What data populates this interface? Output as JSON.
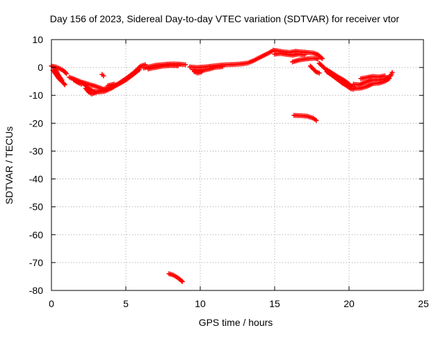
{
  "chart_data": {
    "type": "scatter",
    "title": "Day 156 of 2023, Sidereal Day-to-day VTEC variation (SDTVAR) for receiver vtor",
    "xlabel": "GPS time / hours",
    "ylabel": "SDTVAR / TECUs",
    "xlim": [
      0,
      25
    ],
    "ylim": [
      -80,
      10
    ],
    "x_ticks": [
      0,
      5,
      10,
      15,
      20,
      25
    ],
    "y_ticks": [
      10,
      0,
      -10,
      -20,
      -30,
      -40,
      -50,
      -60,
      -70,
      -80
    ],
    "grid": true,
    "marker": "+",
    "series_color": "#ff0000",
    "series": [
      {
        "name": "SDTVAR",
        "segments": [
          [
            [
              0.0,
              0.5
            ],
            [
              0.3,
              0.2
            ],
            [
              0.6,
              -0.5
            ],
            [
              0.9,
              -1.5
            ],
            [
              1.0,
              -2.2
            ]
          ],
          [
            [
              0.1,
              -1.0
            ],
            [
              0.3,
              -2.5
            ],
            [
              0.5,
              -4.0
            ],
            [
              0.8,
              -5.5
            ],
            [
              0.9,
              -6.2
            ]
          ],
          [
            [
              0.2,
              0.0
            ],
            [
              0.35,
              -1.5
            ],
            [
              0.5,
              -3.0
            ],
            [
              0.7,
              -4.5
            ]
          ],
          [
            [
              1.2,
              -3.5
            ],
            [
              1.6,
              -4.3
            ],
            [
              2.0,
              -5.2
            ],
            [
              2.5,
              -6.0
            ],
            [
              3.0,
              -6.8
            ],
            [
              3.5,
              -7.8
            ],
            [
              4.0,
              -7.0
            ],
            [
              4.5,
              -5.8
            ],
            [
              5.0,
              -4.0
            ],
            [
              5.5,
              -2.0
            ],
            [
              5.8,
              -0.5
            ],
            [
              6.0,
              0.5
            ],
            [
              6.3,
              1.0
            ]
          ],
          [
            [
              1.8,
              -5.0
            ],
            [
              2.2,
              -6.0
            ],
            [
              2.5,
              -7.5
            ],
            [
              2.8,
              -8.5
            ],
            [
              3.2,
              -8.8
            ],
            [
              3.6,
              -8.5
            ],
            [
              4.0,
              -7.5
            ],
            [
              4.5,
              -6.0
            ],
            [
              5.0,
              -4.5
            ],
            [
              5.5,
              -2.5
            ],
            [
              5.9,
              -0.8
            ]
          ],
          [
            [
              2.3,
              -7.5
            ],
            [
              2.5,
              -8.8
            ],
            [
              2.7,
              -9.5
            ],
            [
              3.0,
              -9.0
            ],
            [
              3.3,
              -8.2
            ]
          ],
          [
            [
              1.5,
              -4.5
            ],
            [
              1.8,
              -5.5
            ],
            [
              2.0,
              -6.0
            ]
          ],
          [
            [
              3.4,
              -2.5
            ],
            [
              3.5,
              -3.0
            ]
          ],
          [
            [
              3.8,
              -6.5
            ],
            [
              4.2,
              -6.0
            ]
          ],
          [
            [
              6.2,
              -0.2
            ],
            [
              6.6,
              0.3
            ],
            [
              7.0,
              0.8
            ],
            [
              7.4,
              1.0
            ],
            [
              7.8,
              1.2
            ],
            [
              8.2,
              1.3
            ],
            [
              8.6,
              1.2
            ],
            [
              9.0,
              1.0
            ]
          ],
          [
            [
              6.5,
              -0.5
            ],
            [
              7.0,
              0.0
            ],
            [
              7.5,
              0.5
            ],
            [
              8.0,
              0.7
            ],
            [
              8.5,
              0.6
            ]
          ],
          [
            [
              9.3,
              0.2
            ],
            [
              9.8,
              0.0
            ],
            [
              10.3,
              0.2
            ],
            [
              10.8,
              0.5
            ],
            [
              11.3,
              0.8
            ],
            [
              11.8,
              1.0
            ],
            [
              12.3,
              1.1
            ],
            [
              12.8,
              1.3
            ],
            [
              13.2,
              1.6
            ],
            [
              13.6,
              2.5
            ],
            [
              14.0,
              3.6
            ],
            [
              14.3,
              4.4
            ],
            [
              14.6,
              5.2
            ],
            [
              14.8,
              5.8
            ]
          ],
          [
            [
              9.5,
              -0.8
            ],
            [
              10.0,
              -1.2
            ],
            [
              10.5,
              -0.7
            ],
            [
              11.0,
              0.0
            ],
            [
              11.5,
              0.3
            ]
          ],
          [
            [
              9.6,
              -1.5
            ],
            [
              9.8,
              -2.0
            ],
            [
              10.1,
              -1.6
            ]
          ],
          [
            [
              14.9,
              6.2
            ],
            [
              15.2,
              6.0
            ],
            [
              15.6,
              5.6
            ],
            [
              16.0,
              5.4
            ],
            [
              16.4,
              5.8
            ],
            [
              16.8,
              5.6
            ],
            [
              17.2,
              5.4
            ],
            [
              17.6,
              5.2
            ],
            [
              17.9,
              4.6
            ],
            [
              18.2,
              3.2
            ]
          ],
          [
            [
              15.0,
              4.8
            ],
            [
              15.4,
              5.0
            ],
            [
              15.8,
              4.7
            ],
            [
              16.2,
              4.4
            ],
            [
              16.6,
              4.8
            ],
            [
              17.0,
              4.5
            ]
          ],
          [
            [
              16.2,
              2.0
            ],
            [
              16.6,
              2.6
            ],
            [
              17.0,
              3.0
            ],
            [
              17.4,
              3.2
            ],
            [
              17.7,
              3.3
            ],
            [
              17.9,
              3.0
            ]
          ],
          [
            [
              17.4,
              0.5
            ],
            [
              17.6,
              -0.6
            ],
            [
              17.8,
              -1.6
            ],
            [
              18.0,
              -2.0
            ]
          ],
          [
            [
              18.0,
              1.5
            ],
            [
              18.2,
              0.5
            ],
            [
              18.4,
              -0.5
            ],
            [
              18.8,
              -1.8
            ],
            [
              19.2,
              -3.2
            ],
            [
              19.6,
              -4.4
            ],
            [
              19.9,
              -5.5
            ],
            [
              20.1,
              -6.5
            ],
            [
              20.3,
              -6.9
            ]
          ],
          [
            [
              18.5,
              -1.5
            ],
            [
              18.9,
              -3.0
            ],
            [
              19.3,
              -4.6
            ],
            [
              19.6,
              -5.8
            ],
            [
              19.9,
              -6.8
            ],
            [
              20.1,
              -7.6
            ],
            [
              20.3,
              -7.8
            ]
          ],
          [
            [
              19.2,
              -3.5
            ],
            [
              19.5,
              -4.5
            ],
            [
              19.8,
              -5.5
            ]
          ],
          [
            [
              20.3,
              -6.0
            ],
            [
              20.7,
              -6.2
            ],
            [
              21.0,
              -5.5
            ],
            [
              21.5,
              -4.5
            ],
            [
              22.0,
              -4.5
            ],
            [
              22.4,
              -4.2
            ],
            [
              22.8,
              -3.0
            ],
            [
              22.9,
              -1.8
            ]
          ],
          [
            [
              20.4,
              -7.5
            ],
            [
              20.8,
              -7.4
            ],
            [
              21.2,
              -6.8
            ],
            [
              21.6,
              -5.8
            ],
            [
              22.0,
              -5.6
            ],
            [
              22.4,
              -5.0
            ],
            [
              22.7,
              -4.0
            ]
          ],
          [
            [
              20.8,
              -4.0
            ],
            [
              21.2,
              -3.6
            ],
            [
              21.6,
              -3.2
            ],
            [
              22.0,
              -3.4
            ],
            [
              22.4,
              -3.0
            ]
          ],
          [
            [
              16.3,
              -17.2
            ],
            [
              16.8,
              -17.3
            ],
            [
              17.2,
              -17.5
            ],
            [
              17.6,
              -18.2
            ],
            [
              17.8,
              -19.0
            ]
          ],
          [
            [
              7.9,
              -74.0
            ],
            [
              8.2,
              -74.5
            ],
            [
              8.5,
              -75.5
            ],
            [
              8.8,
              -76.8
            ]
          ]
        ]
      }
    ]
  }
}
